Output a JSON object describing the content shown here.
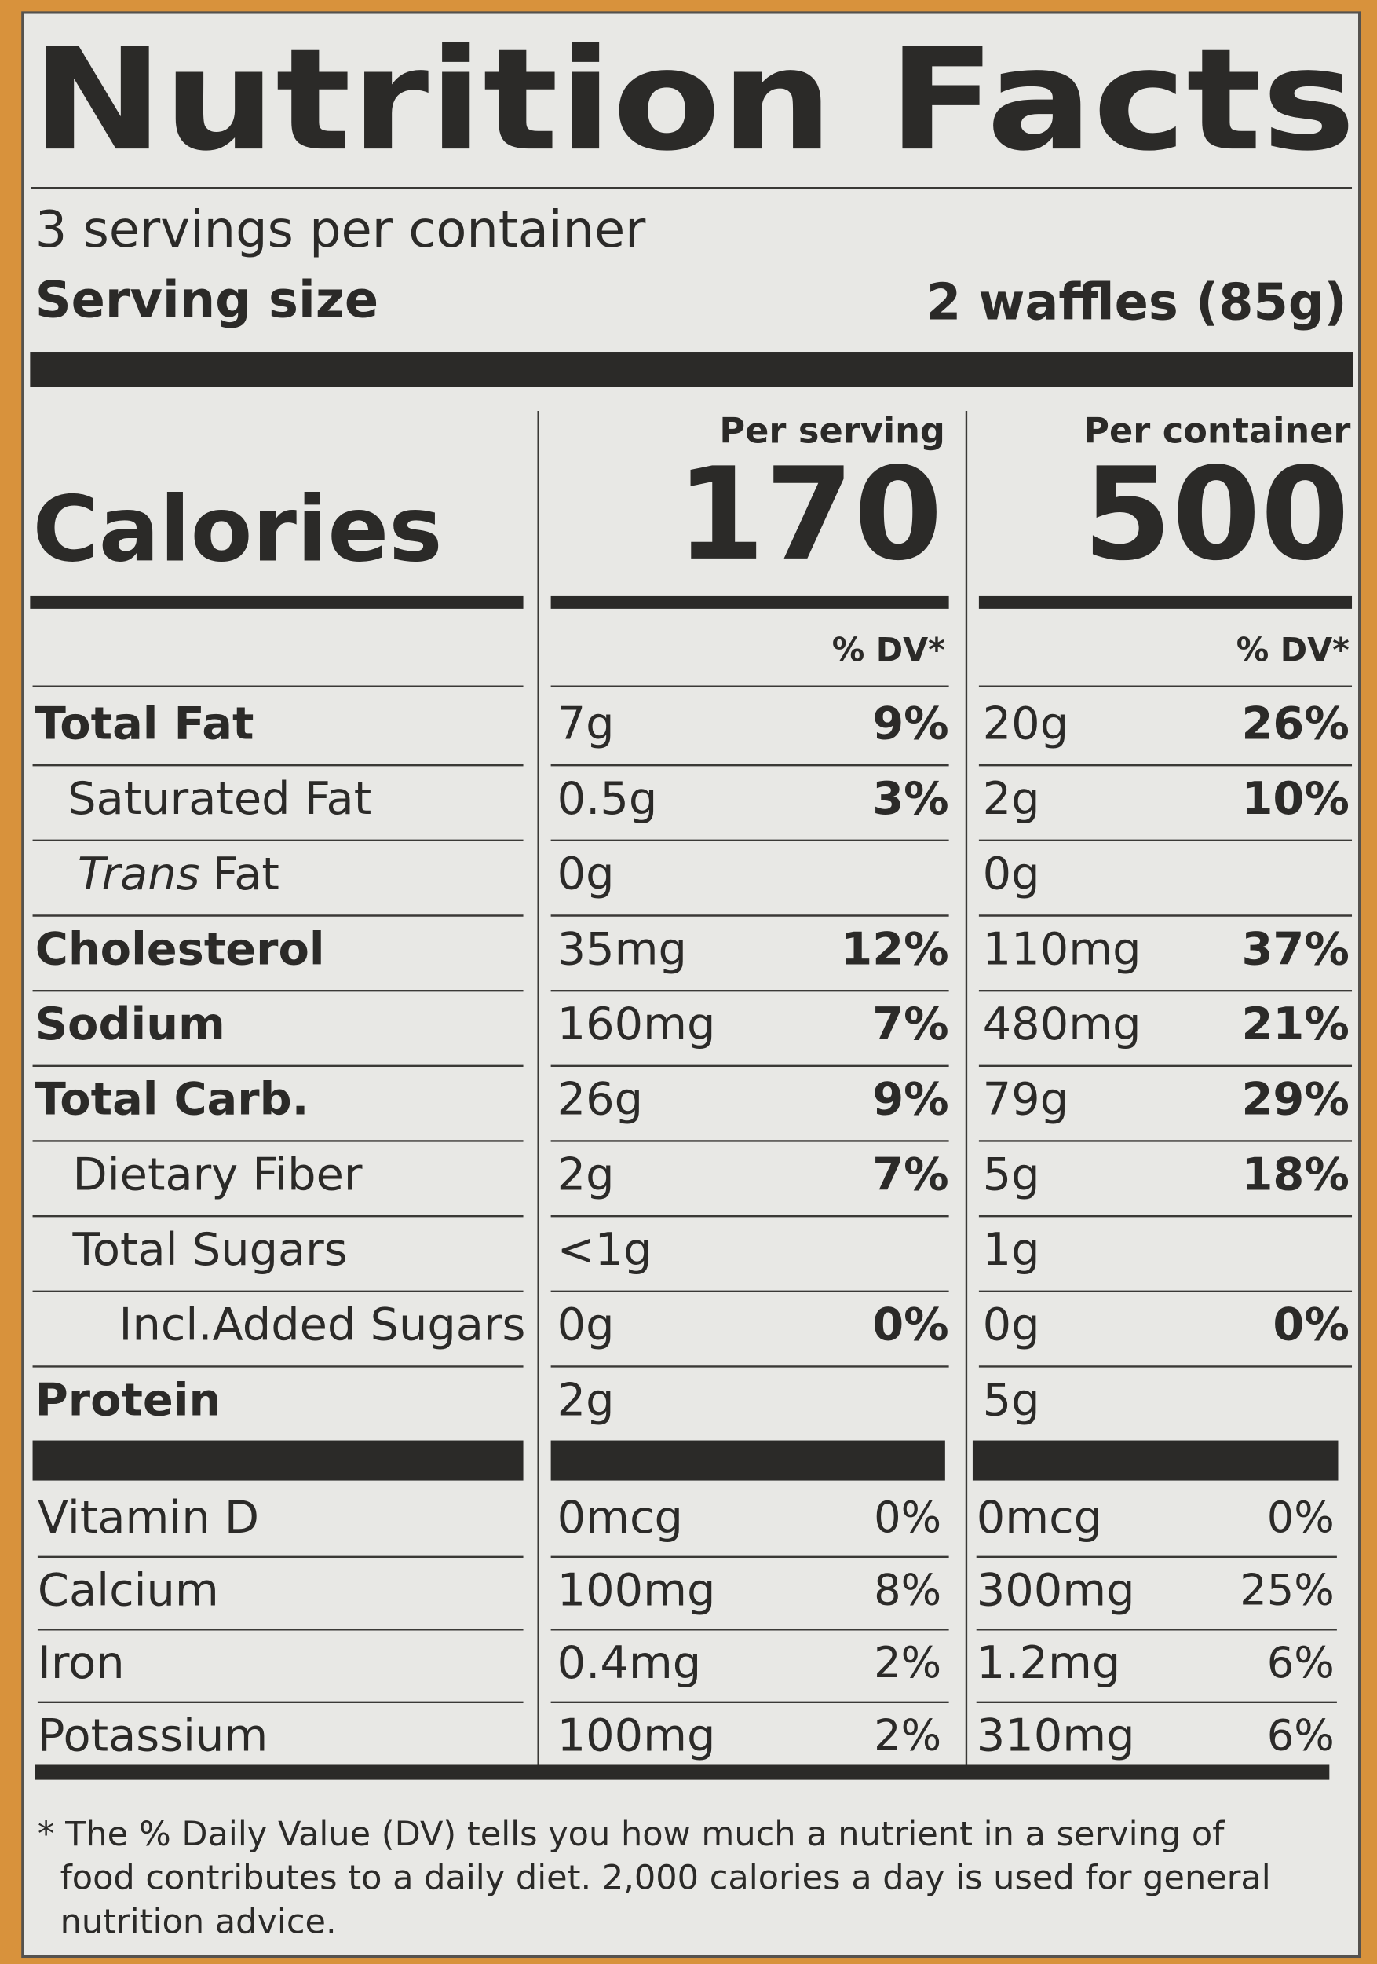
{
  "header": {
    "title": "Nutrition Facts",
    "servings": "3 servings per container",
    "serving_size_label": "Serving size",
    "serving_size_value": "2 waffles (85g)"
  },
  "columns": {
    "per_serving": "Per serving",
    "per_container": "Per container",
    "dv_serving": "% DV*",
    "dv_container": "% DV*"
  },
  "calories": {
    "label": "Calories",
    "per_serving": "170",
    "per_container": "500"
  },
  "nutrients": [
    {
      "name": "Total Fat",
      "serving": "7g",
      "serving_dv": "9%",
      "container": "20g",
      "container_dv": "26%"
    },
    {
      "name": "Saturated Fat",
      "serving": "0.5g",
      "serving_dv": "3%",
      "container": "2g",
      "container_dv": "10%"
    },
    {
      "name_italic": "Trans",
      "name": "Fat",
      "serving": "0g",
      "container": "0g"
    },
    {
      "name": "Cholesterol",
      "serving": "35mg",
      "serving_dv": "12%",
      "container": "110mg",
      "container_dv": "37%"
    },
    {
      "name": "Sodium",
      "serving": "160mg",
      "serving_dv": "7%",
      "container": "480mg",
      "container_dv": "21%"
    },
    {
      "name": "Total Carb.",
      "serving": "26g",
      "serving_dv": "9%",
      "container": "79g",
      "container_dv": "29%"
    },
    {
      "name": "Dietary Fiber",
      "serving": "2g",
      "serving_dv": "7%",
      "container": "5g",
      "container_dv": "18%"
    },
    {
      "name": "Total Sugars",
      "serving": "<1g",
      "container": "1g"
    },
    {
      "name": "Incl.Added Sugars",
      "serving": "0g",
      "serving_dv": "0%",
      "container": "0g",
      "container_dv": "0%"
    },
    {
      "name": "Protein",
      "serving": "2g",
      "container": "5g"
    }
  ],
  "vitamins": [
    {
      "name": "Vitamin D",
      "serving": "0mcg",
      "serving_dv": "0%",
      "container": "0mcg",
      "container_dv": "0%"
    },
    {
      "name": "Calcium",
      "serving": "100mg",
      "serving_dv": "8%",
      "container": "300mg",
      "container_dv": "25%"
    },
    {
      "name": "Iron",
      "serving": "0.4mg",
      "serving_dv": "2%",
      "container": "1.2mg",
      "container_dv": "6%"
    },
    {
      "name": "Potassium",
      "serving": "100mg",
      "serving_dv": "2%",
      "container": "310mg",
      "container_dv": "6%"
    }
  ],
  "footnote": [
    "* The % Daily Value (DV) tells you how much a nutrient in a serving of",
    "food contributes to a daily diet. 2,000 calories a day is used for general",
    "nutrition advice."
  ]
}
